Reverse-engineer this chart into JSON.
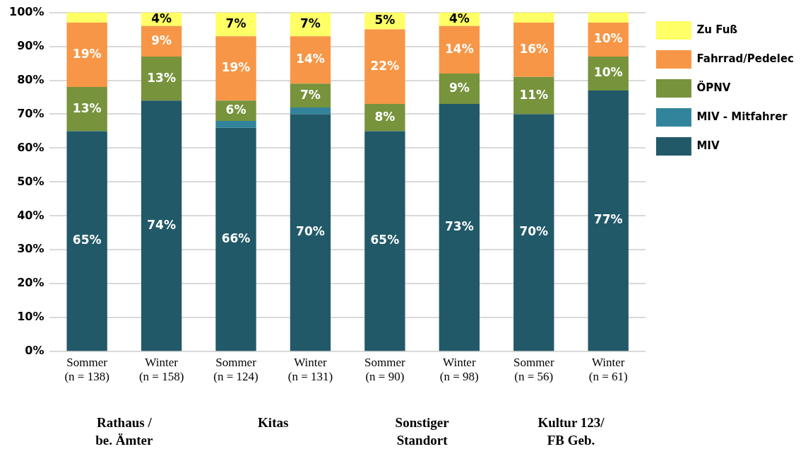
{
  "chart_data": {
    "type": "bar",
    "stacked": true,
    "categories": [
      "Sommer\n(n = 138)",
      "Winter\n(n = 158)",
      "Sommer\n(n = 124)",
      "Winter\n(n = 131)",
      "Sommer\n(n = 90)",
      "Winter\n(n = 98)",
      "Sommer\n(n = 56)",
      "Winter\n(n = 61)"
    ],
    "series": [
      {
        "name": "MIV",
        "color": "#215968",
        "values": [
          65,
          74,
          66,
          70,
          65,
          73,
          70,
          77
        ],
        "value_labels": [
          "65%",
          "74%",
          "66%",
          "70%",
          "65%",
          "73%",
          "70%",
          "77%"
        ]
      },
      {
        "name": "MIV - Mitfahrer",
        "color": "#31849b",
        "values": [
          0,
          0,
          2,
          2,
          0,
          0,
          0,
          0
        ],
        "value_labels": [
          null,
          null,
          null,
          null,
          null,
          null,
          null,
          null
        ]
      },
      {
        "name": "ÖPNV",
        "color": "#77933c",
        "values": [
          13,
          13,
          6,
          7,
          8,
          9,
          11,
          10
        ],
        "value_labels": [
          "13%",
          "13%",
          "6%",
          "7%",
          "8%",
          "9%",
          "11%",
          "10%"
        ]
      },
      {
        "name": "Fahrrad/Pedelec",
        "color": "#f79646",
        "values": [
          19,
          9,
          19,
          14,
          22,
          14,
          16,
          10
        ],
        "value_labels": [
          "19%",
          "9%",
          "19%",
          "14%",
          "22%",
          "14%",
          "16%",
          "10%"
        ]
      },
      {
        "name": "Zu Fuß",
        "color": "#ffff66",
        "values": [
          3,
          4,
          7,
          7,
          5,
          4,
          3,
          3
        ],
        "value_labels": [
          null,
          "4%",
          "7%",
          "7%",
          "5%",
          "4%",
          null,
          null
        ]
      }
    ],
    "ylim": [
      0,
      100
    ],
    "yticks": [
      {
        "value": 0,
        "label": "0%"
      },
      {
        "value": 10,
        "label": "10%"
      },
      {
        "value": 20,
        "label": "20%"
      },
      {
        "value": 30,
        "label": "30%"
      },
      {
        "value": 40,
        "label": "40%"
      },
      {
        "value": 50,
        "label": "50%"
      },
      {
        "value": 60,
        "label": "60%"
      },
      {
        "value": 70,
        "label": "70%"
      },
      {
        "value": 80,
        "label": "80%"
      },
      {
        "value": 90,
        "label": "90%"
      },
      {
        "value": 100,
        "label": "100%"
      }
    ],
    "grid": "y",
    "legend": "right",
    "annotations": [
      "Rathaus /\nbe. Ämter",
      "Kitas",
      "Sonstiger\nStandort",
      "Kultur 123/\nFB Geb."
    ]
  }
}
